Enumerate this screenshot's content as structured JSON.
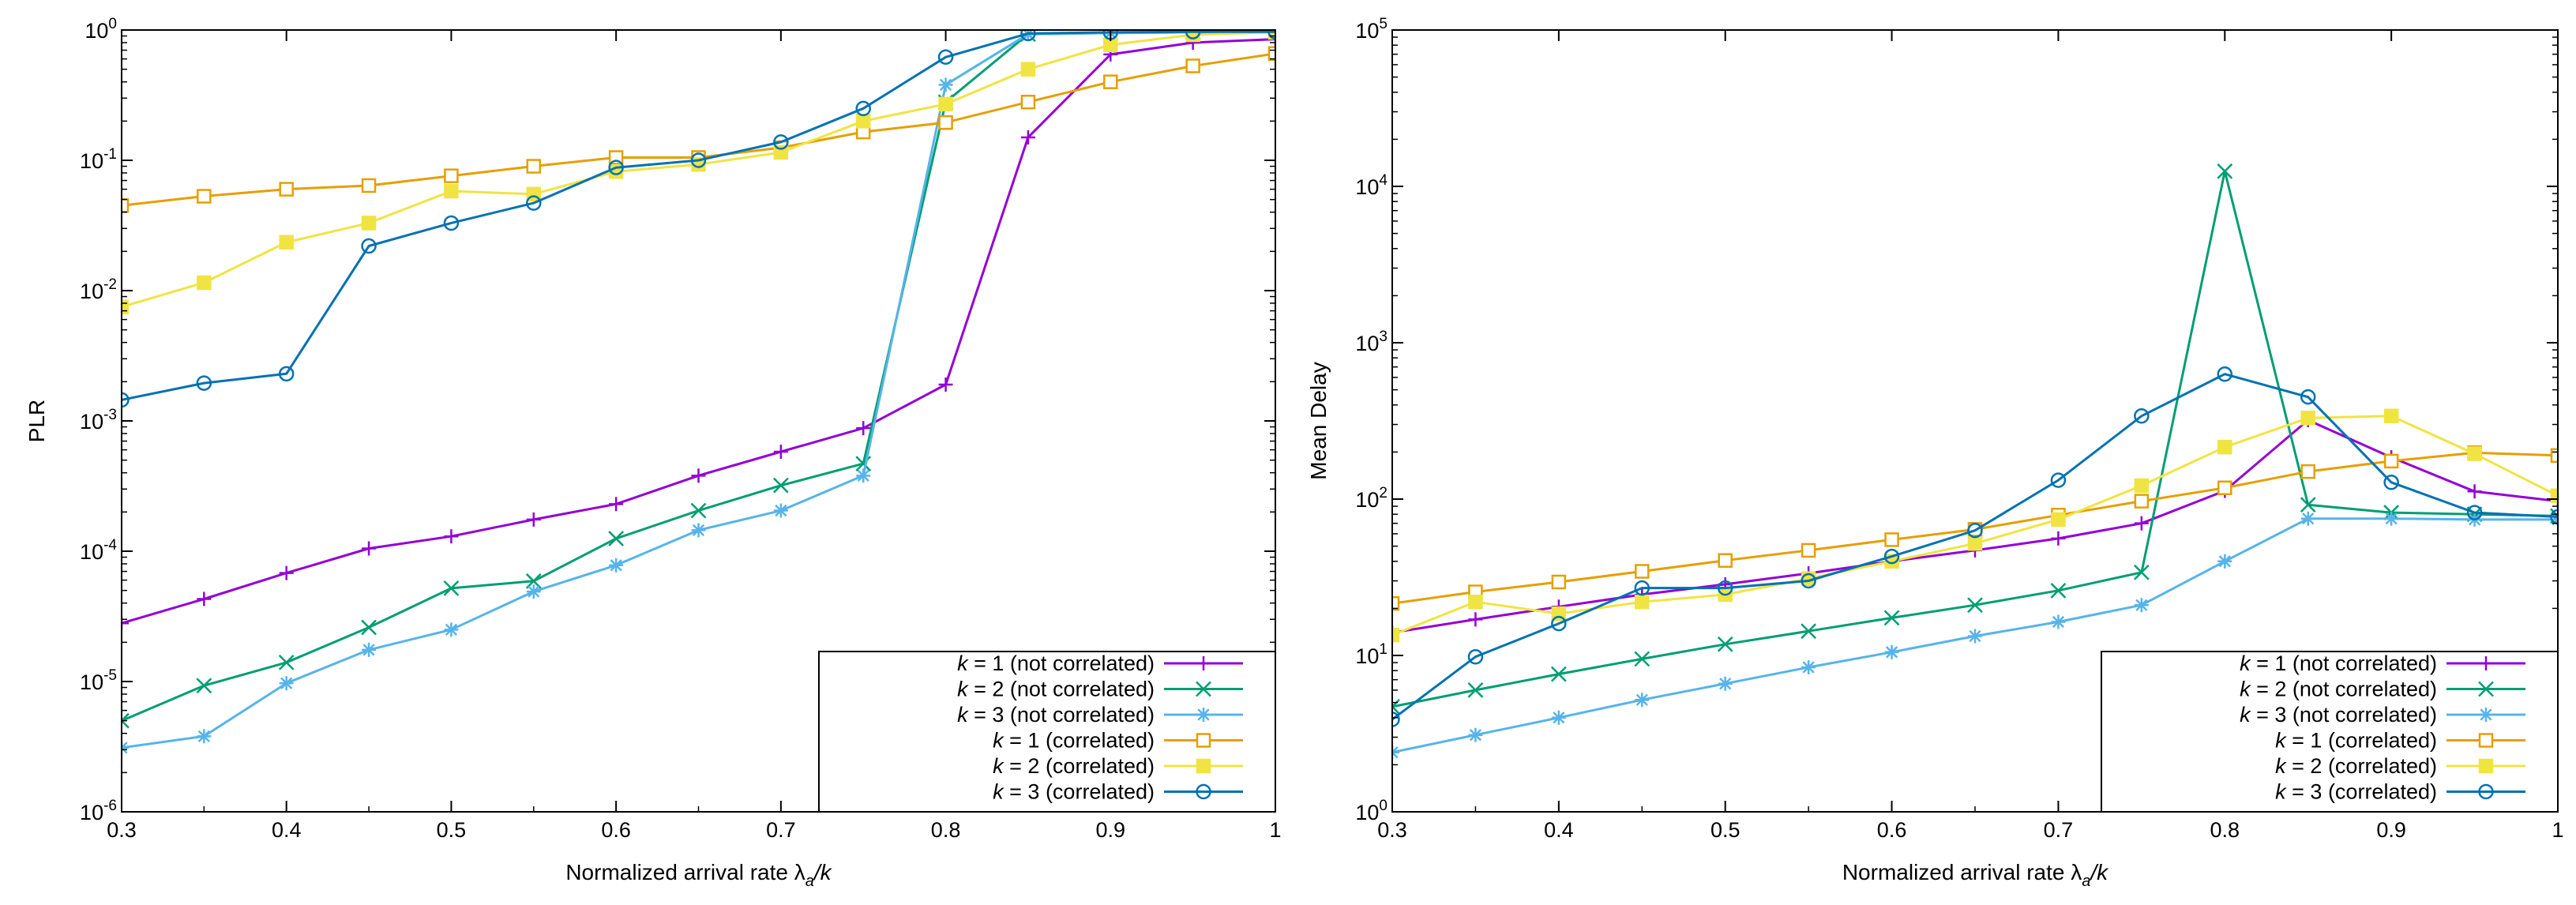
{
  "chart_data": [
    {
      "type": "line",
      "title": "",
      "xlabel": "Normalized arrival rate λ_a/k",
      "ylabel": "PLR",
      "yscale": "log",
      "xlim": [
        0.3,
        1.0
      ],
      "ylim": [
        1e-06,
        1
      ],
      "grid": false,
      "legend_position": "bottom-right",
      "x_ticks": [
        "0.3",
        "0.4",
        "0.5",
        "0.6",
        "0.7",
        "0.8",
        "0.9",
        "1"
      ],
      "y_ticks": [
        "10^-6",
        "10^-5",
        "10^-4",
        "10^-3",
        "10^-2",
        "10^-1",
        "10^0"
      ],
      "x": [
        0.3,
        0.35,
        0.4,
        0.45,
        0.5,
        0.55,
        0.6,
        0.65,
        0.7,
        0.75,
        0.8,
        0.85,
        0.9,
        0.95,
        1.0
      ],
      "series": [
        {
          "name": "k = 1 (not correlated)",
          "k": "k",
          "rest": " = 1 (not correlated)",
          "color": "#9400d3",
          "marker": "plus",
          "values": [
            2.8e-05,
            4.3e-05,
            6.8e-05,
            0.000105,
            0.00013,
            0.000175,
            0.00023,
            0.00038,
            0.00058,
            0.00088,
            0.0019,
            0.15,
            0.65,
            0.8,
            0.85
          ]
        },
        {
          "name": "k = 2 (not correlated)",
          "k": "k",
          "rest": " = 2 (not correlated)",
          "color": "#009e73",
          "marker": "cross",
          "values": [
            5e-06,
            9.3e-06,
            1.4e-05,
            2.6e-05,
            5.2e-05,
            5.9e-05,
            0.000125,
            0.000205,
            0.00032,
            0.00047,
            0.28,
            0.93,
            0.95,
            0.96,
            0.96
          ]
        },
        {
          "name": "k = 3 (not correlated)",
          "k": "k",
          "rest": " = 3 (not correlated)",
          "color": "#56b4e9",
          "marker": "star",
          "values": [
            3.1e-06,
            3.8e-06,
            9.7e-06,
            1.75e-05,
            2.5e-05,
            4.9e-05,
            7.8e-05,
            0.000145,
            0.000205,
            0.00038,
            0.38,
            0.93,
            0.95,
            0.96,
            0.96
          ]
        },
        {
          "name": "k = 1 (correlated)",
          "k": "k",
          "rest": " = 1 (correlated)",
          "color": "#e69f00",
          "marker": "square-open",
          "values": [
            0.045,
            0.053,
            0.06,
            0.064,
            0.076,
            0.09,
            0.105,
            0.105,
            0.125,
            0.165,
            0.195,
            0.28,
            0.4,
            0.53,
            0.66
          ]
        },
        {
          "name": "k = 2 (correlated)",
          "k": "k",
          "rest": " = 2 (correlated)",
          "color": "#f0e442",
          "marker": "square-filled",
          "values": [
            0.0075,
            0.0115,
            0.0235,
            0.033,
            0.058,
            0.055,
            0.082,
            0.093,
            0.115,
            0.2,
            0.27,
            0.5,
            0.77,
            0.92,
            0.96
          ]
        },
        {
          "name": "k = 3 (correlated)",
          "k": "k",
          "rest": " = 3 (correlated)",
          "color": "#0072b2",
          "marker": "circle-open",
          "values": [
            0.00145,
            0.00195,
            0.0023,
            0.022,
            0.033,
            0.047,
            0.088,
            0.1,
            0.138,
            0.25,
            0.62,
            0.94,
            0.96,
            0.97,
            0.97
          ]
        }
      ]
    },
    {
      "type": "line",
      "title": "",
      "xlabel": "Normalized arrival rate λ_a/k",
      "ylabel": "Mean Delay",
      "yscale": "log",
      "xlim": [
        0.3,
        1.0
      ],
      "ylim": [
        1,
        100000
      ],
      "grid": false,
      "legend_position": "bottom-right",
      "x_ticks": [
        "0.3",
        "0.4",
        "0.5",
        "0.6",
        "0.7",
        "0.8",
        "0.9",
        "1"
      ],
      "y_ticks": [
        "10^0",
        "10^1",
        "10^2",
        "10^3",
        "10^4",
        "10^5"
      ],
      "x": [
        0.3,
        0.35,
        0.4,
        0.45,
        0.5,
        0.55,
        0.6,
        0.65,
        0.7,
        0.75,
        0.8,
        0.85,
        0.9,
        0.95,
        1.0
      ],
      "series": [
        {
          "name": "k = 1 (not correlated)",
          "k": "k",
          "rest": " = 1 (not correlated)",
          "color": "#9400d3",
          "marker": "plus",
          "values": [
            14,
            17,
            20.5,
            24.5,
            28.5,
            33.5,
            40,
            47,
            56,
            70,
            113,
            320,
            185,
            112,
            97
          ]
        },
        {
          "name": "k = 2 (not correlated)",
          "k": "k",
          "rest": " = 2 (not correlated)",
          "color": "#009e73",
          "marker": "cross",
          "values": [
            4.7,
            6,
            7.6,
            9.5,
            11.8,
            14.3,
            17.4,
            21,
            26,
            34,
            12500,
            92,
            82,
            80,
            78
          ]
        },
        {
          "name": "k = 3 (not correlated)",
          "k": "k",
          "rest": " = 3 (not correlated)",
          "color": "#56b4e9",
          "marker": "star",
          "values": [
            2.4,
            3.1,
            4,
            5.2,
            6.6,
            8.4,
            10.5,
            13.3,
            16.4,
            21,
            40,
            75,
            75,
            74,
            74
          ]
        },
        {
          "name": "k = 1 (correlated)",
          "k": "k",
          "rest": " = 1 (correlated)",
          "color": "#e69f00",
          "marker": "square-open",
          "values": [
            21.5,
            25.5,
            29.5,
            34.5,
            40.5,
            47,
            55,
            64,
            79,
            97,
            118,
            150,
            175,
            198,
            190
          ]
        },
        {
          "name": "k = 2 (correlated)",
          "k": "k",
          "rest": " = 2 (correlated)",
          "color": "#f0e442",
          "marker": "square-filled",
          "values": [
            13.5,
            22,
            18.5,
            22,
            24.5,
            31,
            40,
            52,
            74,
            122,
            215,
            330,
            340,
            195,
            105
          ]
        },
        {
          "name": "k = 3 (correlated)",
          "k": "k",
          "rest": " = 3 (correlated)",
          "color": "#0072b2",
          "marker": "circle-open",
          "values": [
            3.9,
            9.8,
            16,
            27,
            27,
            30,
            43,
            63,
            132,
            340,
            630,
            450,
            128,
            82,
            77
          ]
        }
      ]
    }
  ]
}
